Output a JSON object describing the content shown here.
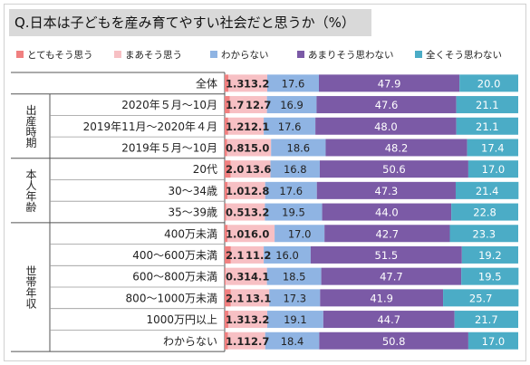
{
  "chart_data": {
    "type": "bar",
    "stacked": true,
    "orientation": "horizontal",
    "percent_stacked": true,
    "title": "Q.日本は子どもを産み育てやすい社会だと思うか（%）",
    "xlim": [
      0,
      100
    ],
    "legend_position": "top",
    "groups": [
      {
        "name": "",
        "rows": [
          0,
          0
        ]
      },
      {
        "name": "出産時期",
        "rows": [
          1,
          3
        ]
      },
      {
        "name": "本人年齢",
        "rows": [
          4,
          6
        ]
      },
      {
        "name": "世帯年収",
        "rows": [
          7,
          12
        ]
      }
    ],
    "categories": [
      "全体",
      "2020年５月～10月",
      "2019年11月～2020年４月",
      "2019年５月～10月",
      "20代",
      "30～34歳",
      "35～39歳",
      "400万未満",
      "400～600万未満",
      "600～800万未満",
      "800～1000万未満",
      "1000万円以上",
      "わからない"
    ],
    "series": [
      {
        "name": "とてもそう思う",
        "color": "#f08080",
        "values": [
          1.3,
          1.7,
          1.2,
          0.8,
          2.0,
          1.0,
          0.5,
          1.0,
          2.1,
          0.3,
          2.1,
          1.3,
          1.1
        ]
      },
      {
        "name": "まあそう思う",
        "color": "#f7c0c4",
        "values": [
          13.2,
          12.7,
          12.1,
          15.0,
          13.6,
          12.8,
          13.2,
          16.0,
          11.2,
          14.1,
          13.1,
          13.2,
          12.7
        ]
      },
      {
        "name": "わからない",
        "color": "#8fb4e3",
        "values": [
          17.6,
          16.9,
          17.6,
          18.6,
          16.8,
          17.6,
          19.5,
          17.0,
          16.0,
          18.5,
          17.3,
          19.1,
          18.4
        ]
      },
      {
        "name": "あまりそう思わない",
        "color": "#7b5aa6",
        "values": [
          47.9,
          47.6,
          48.0,
          48.2,
          50.6,
          47.3,
          44.0,
          42.7,
          51.5,
          47.7,
          41.9,
          44.7,
          50.8
        ]
      },
      {
        "name": "全くそう思わない",
        "color": "#4bacc6",
        "values": [
          20.0,
          21.1,
          21.1,
          17.4,
          17.0,
          21.4,
          22.8,
          23.3,
          19.2,
          19.5,
          25.7,
          21.7,
          17.0
        ]
      }
    ]
  }
}
